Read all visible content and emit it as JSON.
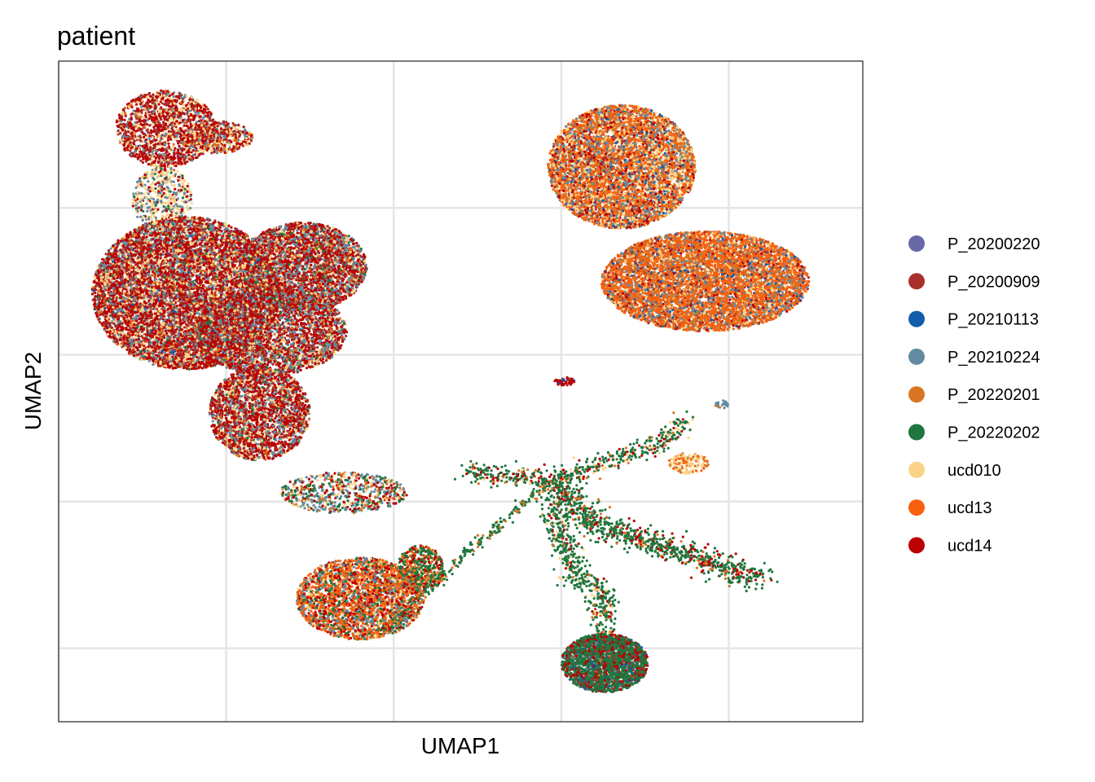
{
  "chart_data": {
    "type": "scatter",
    "title": "patient",
    "xlabel": "UMAP1",
    "ylabel": "UMAP2",
    "grid": true,
    "xlim": [
      -10,
      14
    ],
    "ylim": [
      -10,
      12.5
    ],
    "xticks": [
      -10,
      -5,
      0,
      5,
      10
    ],
    "yticks": [
      -7.5,
      -2.5,
      2.5,
      7.5
    ],
    "show_tick_labels": false,
    "legend_position": "right",
    "series": [
      {
        "name": "P_20200220",
        "color": "#6B68A9"
      },
      {
        "name": "P_20200909",
        "color": "#A9302A"
      },
      {
        "name": "P_20210113",
        "color": "#135DAB"
      },
      {
        "name": "P_20210224",
        "color": "#628AA3"
      },
      {
        "name": "P_20220201",
        "color": "#D97523"
      },
      {
        "name": "P_20220202",
        "color": "#20763F"
      },
      {
        "name": "ucd010",
        "color": "#FBD387"
      },
      {
        "name": "ucd13",
        "color": "#F8600F"
      },
      {
        "name": "ucd14",
        "color": "#BA0000"
      }
    ],
    "clusters": [
      {
        "shape": "circle",
        "cx": -6.8,
        "cy": 10.2,
        "rx": 1.5,
        "ry": 1.3,
        "n": 1500,
        "mix": {
          "ucd14": 0.45,
          "P_20200909": 0.2,
          "ucd010": 0.15,
          "P_20210224": 0.12,
          "P_20220201": 0.08
        }
      },
      {
        "shape": "circle",
        "cx": -5.2,
        "cy": 9.9,
        "rx": 1.0,
        "ry": 0.55,
        "n": 450,
        "mix": {
          "ucd14": 0.35,
          "P_20200909": 0.2,
          "ucd010": 0.2,
          "P_20220201": 0.15,
          "P_20210224": 0.1
        }
      },
      {
        "shape": "circle",
        "cx": -6.9,
        "cy": 7.8,
        "rx": 0.9,
        "ry": 1.1,
        "n": 500,
        "mix": {
          "ucd010": 0.45,
          "P_20210224": 0.3,
          "ucd14": 0.15,
          "P_20220202": 0.1
        }
      },
      {
        "shape": "circle",
        "cx": -6.2,
        "cy": 4.6,
        "rx": 2.8,
        "ry": 2.6,
        "n": 9000,
        "mix": {
          "ucd14": 0.38,
          "P_20200909": 0.18,
          "ucd010": 0.16,
          "P_20210224": 0.16,
          "P_20220201": 0.08,
          "P_20220202": 0.02,
          "P_20210113": 0.02
        }
      },
      {
        "shape": "circle",
        "cx": -2.7,
        "cy": 5.5,
        "rx": 1.9,
        "ry": 1.5,
        "n": 3500,
        "mix": {
          "ucd14": 0.35,
          "P_20210224": 0.25,
          "P_20200909": 0.15,
          "ucd010": 0.12,
          "P_20220201": 0.08,
          "P_20220202": 0.05
        }
      },
      {
        "shape": "circle",
        "cx": -3.7,
        "cy": 3.3,
        "rx": 2.3,
        "ry": 1.5,
        "n": 3500,
        "mix": {
          "ucd14": 0.4,
          "P_20210224": 0.22,
          "P_20200909": 0.15,
          "ucd010": 0.13,
          "P_20220201": 0.07,
          "P_20220202": 0.03
        }
      },
      {
        "shape": "circle",
        "cx": -4.0,
        "cy": 0.5,
        "rx": 1.5,
        "ry": 1.6,
        "n": 2500,
        "mix": {
          "ucd14": 0.42,
          "P_20210224": 0.2,
          "P_20200909": 0.15,
          "ucd010": 0.13,
          "P_20220201": 0.07,
          "P_20220202": 0.03
        }
      },
      {
        "shape": "circle",
        "cx": -1.5,
        "cy": -2.2,
        "rx": 1.9,
        "ry": 0.7,
        "n": 700,
        "mix": {
          "P_20210224": 0.3,
          "ucd14": 0.2,
          "P_20220202": 0.2,
          "ucd010": 0.15,
          "P_20220201": 0.15
        }
      },
      {
        "shape": "circle",
        "cx": -1.0,
        "cy": -5.8,
        "rx": 1.9,
        "ry": 1.4,
        "n": 2800,
        "mix": {
          "ucd13": 0.3,
          "ucd14": 0.2,
          "P_20220201": 0.15,
          "P_20210224": 0.15,
          "P_20220202": 0.12,
          "ucd010": 0.08
        }
      },
      {
        "shape": "circle",
        "cx": 0.8,
        "cy": -4.8,
        "rx": 0.7,
        "ry": 0.8,
        "n": 500,
        "mix": {
          "P_20220202": 0.5,
          "ucd14": 0.2,
          "P_20220201": 0.15,
          "ucd13": 0.15
        }
      },
      {
        "shape": "circle",
        "cx": 6.8,
        "cy": 8.9,
        "rx": 2.2,
        "ry": 2.1,
        "n": 6000,
        "mix": {
          "ucd13": 0.3,
          "P_20220201": 0.2,
          "ucd010": 0.18,
          "P_20210224": 0.12,
          "ucd14": 0.1,
          "P_20200909": 0.05,
          "P_20210113": 0.05
        }
      },
      {
        "shape": "circle",
        "cx": 9.3,
        "cy": 5.0,
        "rx": 3.1,
        "ry": 1.7,
        "n": 7000,
        "mix": {
          "ucd13": 0.45,
          "P_20220201": 0.2,
          "P_20210224": 0.1,
          "ucd010": 0.1,
          "P_20200909": 0.08,
          "P_20210113": 0.04,
          "ucd14": 0.03
        }
      },
      {
        "shape": "circle",
        "cx": 6.3,
        "cy": -8.0,
        "rx": 1.3,
        "ry": 1.0,
        "n": 2300,
        "mix": {
          "P_20220202": 0.62,
          "ucd14": 0.2,
          "P_20200909": 0.08,
          "P_20210113": 0.05,
          "P_20210224": 0.05
        }
      },
      {
        "shape": "line",
        "pts": [
          [
            6.3,
            -8.0
          ],
          [
            6.3,
            -5.8
          ],
          [
            5.3,
            -4.8
          ],
          [
            4.7,
            -2.5
          ]
        ],
        "n": 600,
        "spread": 0.22,
        "mix": {
          "P_20220202": 0.75,
          "ucd14": 0.1,
          "ucd010": 0.08,
          "P_20220201": 0.07
        }
      },
      {
        "shape": "line",
        "pts": [
          [
            4.7,
            -1.8
          ],
          [
            6.0,
            -3.3
          ],
          [
            8.0,
            -4.0
          ],
          [
            11.0,
            -5.2
          ]
        ],
        "n": 900,
        "spread": 0.22,
        "mix": {
          "P_20220202": 0.7,
          "ucd14": 0.2,
          "P_20220201": 0.1
        }
      },
      {
        "shape": "line",
        "pts": [
          [
            2.2,
            -1.5
          ],
          [
            4.7,
            -1.8
          ],
          [
            8.0,
            -0.5
          ],
          [
            8.8,
            0.3
          ]
        ],
        "n": 500,
        "spread": 0.18,
        "mix": {
          "P_20220202": 0.6,
          "ucd14": 0.2,
          "P_20220201": 0.1,
          "ucd010": 0.1
        }
      },
      {
        "shape": "line",
        "pts": [
          [
            -0.2,
            -6.9
          ],
          [
            2.2,
            -4.2
          ],
          [
            4.7,
            -1.8
          ]
        ],
        "n": 260,
        "spread": 0.08,
        "mix": {
          "P_20220202": 0.8,
          "P_20220201": 0.2
        }
      },
      {
        "shape": "circle",
        "cx": 8.8,
        "cy": -1.2,
        "rx": 0.6,
        "ry": 0.35,
        "n": 150,
        "mix": {
          "ucd010": 0.55,
          "P_20220201": 0.25,
          "ucd13": 0.2
        }
      },
      {
        "shape": "circle",
        "cx": 5.1,
        "cy": 1.6,
        "rx": 0.3,
        "ry": 0.15,
        "n": 50,
        "mix": {
          "ucd14": 0.6,
          "P_20200909": 0.3,
          "P_20210113": 0.1
        }
      },
      {
        "shape": "circle",
        "cx": 9.8,
        "cy": 0.8,
        "rx": 0.2,
        "ry": 0.15,
        "n": 25,
        "mix": {
          "P_20210224": 0.8,
          "P_20220201": 0.2
        }
      }
    ]
  }
}
